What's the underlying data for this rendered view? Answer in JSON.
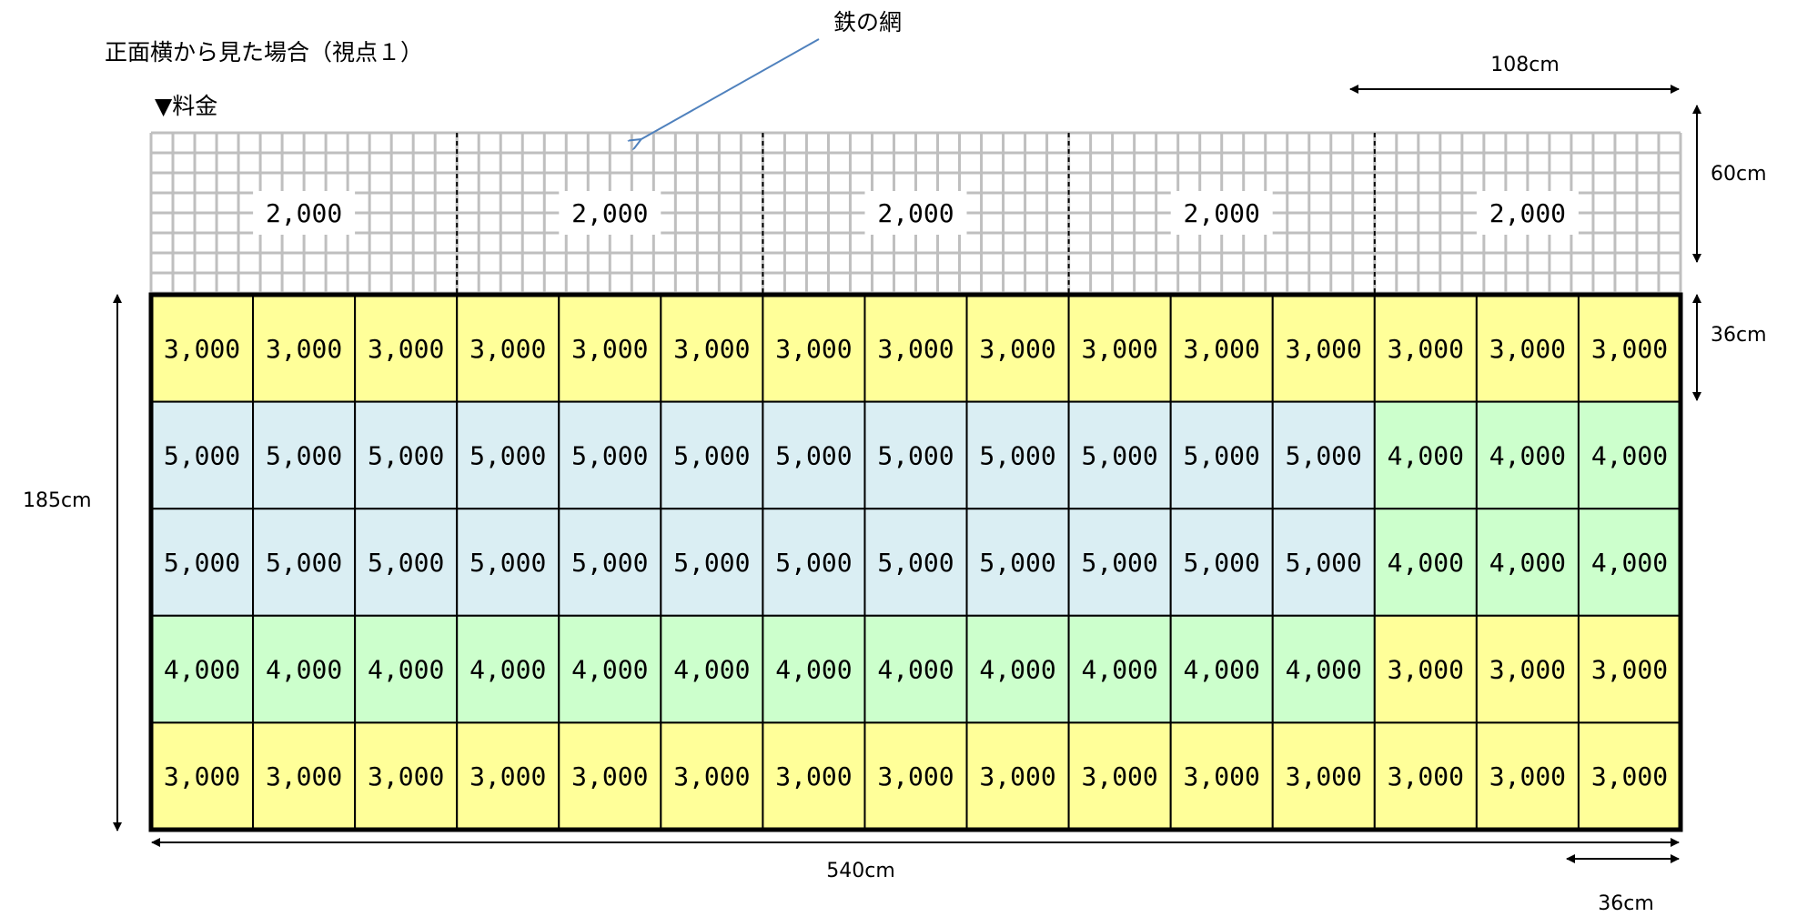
{
  "title": "正面横から見た場合（視点１）",
  "price_heading": "▼料金",
  "net_label": "鉄の網",
  "dimensions": {
    "panel_width": "108cm",
    "net_height": "60cm",
    "row_height": "36cm",
    "total_height": "185cm",
    "total_width": "540cm",
    "cell_width": "36cm"
  },
  "net_panels": [
    "2,000",
    "2,000",
    "2,000",
    "2,000",
    "2,000"
  ],
  "grid": {
    "rows": [
      [
        "3,000",
        "3,000",
        "3,000",
        "3,000",
        "3,000",
        "3,000",
        "3,000",
        "3,000",
        "3,000",
        "3,000",
        "3,000",
        "3,000",
        "3,000",
        "3,000",
        "3,000"
      ],
      [
        "5,000",
        "5,000",
        "5,000",
        "5,000",
        "5,000",
        "5,000",
        "5,000",
        "5,000",
        "5,000",
        "5,000",
        "5,000",
        "5,000",
        "4,000",
        "4,000",
        "4,000"
      ],
      [
        "5,000",
        "5,000",
        "5,000",
        "5,000",
        "5,000",
        "5,000",
        "5,000",
        "5,000",
        "5,000",
        "5,000",
        "5,000",
        "5,000",
        "4,000",
        "4,000",
        "4,000"
      ],
      [
        "4,000",
        "4,000",
        "4,000",
        "4,000",
        "4,000",
        "4,000",
        "4,000",
        "4,000",
        "4,000",
        "4,000",
        "4,000",
        "4,000",
        "3,000",
        "3,000",
        "3,000"
      ],
      [
        "3,000",
        "3,000",
        "3,000",
        "3,000",
        "3,000",
        "3,000",
        "3,000",
        "3,000",
        "3,000",
        "3,000",
        "3,000",
        "3,000",
        "3,000",
        "3,000",
        "3,000"
      ]
    ],
    "price_colors": {
      "3,000": "#ffff99",
      "4,000": "#ccffcc",
      "5,000": "#daeef3"
    }
  },
  "colors": {
    "net_line": "#bfbfbf",
    "arrow_blue": "#4f81bd",
    "border": "#000000"
  }
}
